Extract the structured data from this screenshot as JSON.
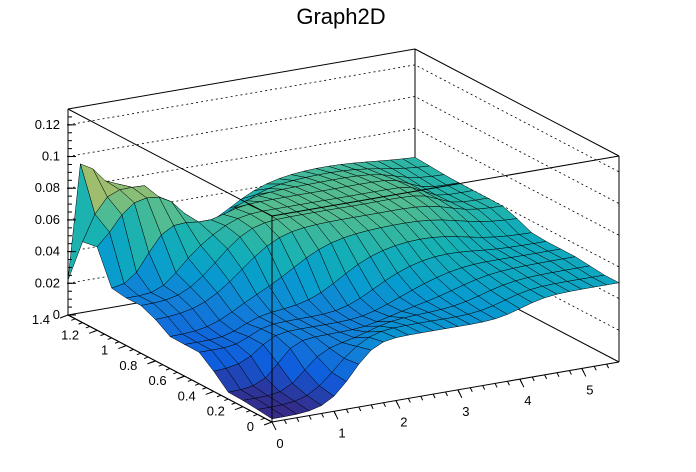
{
  "chart_data": {
    "type": "surface",
    "title": "Graph2D",
    "xlabel": "",
    "ylabel": "",
    "zlabel": "",
    "x_range": [
      0,
      5.6
    ],
    "y_range": [
      0,
      1.4
    ],
    "z_range": [
      0,
      0.13
    ],
    "x_ticks": [
      "0",
      "1",
      "2",
      "3",
      "4",
      "5"
    ],
    "y_ticks": [
      "0",
      "0.2",
      "0.4",
      "0.6",
      "0.8",
      "1",
      "1.2",
      "1.4"
    ],
    "z_ticks": [
      "0",
      "0.02",
      "0.04",
      "0.06",
      "0.08",
      "0.1",
      "0.12"
    ],
    "grid": true,
    "palette": "yellow-green-blue (kBird)",
    "grid_x": [
      0.0,
      0.2,
      0.4,
      0.6,
      0.8,
      1.0,
      1.2,
      1.4,
      1.6,
      1.8,
      2.0,
      2.2,
      2.4,
      2.6,
      2.8,
      3.0,
      3.2,
      3.4,
      3.6,
      3.8,
      4.0,
      4.2,
      4.4,
      4.6,
      4.8,
      5.0,
      5.2,
      5.4,
      5.6
    ],
    "grid_y": [
      0.0,
      0.1,
      0.2,
      0.3,
      0.4,
      0.5,
      0.6,
      0.7,
      0.8,
      0.9,
      1.0,
      1.1,
      1.2,
      1.3,
      1.4
    ],
    "z_samples": [
      {
        "x": 0.0,
        "y": 1.4,
        "z": 0.022
      },
      {
        "x": 0.0,
        "y": 1.0,
        "z": 0.03
      },
      {
        "x": 0.0,
        "y": 0.6,
        "z": 0.02
      },
      {
        "x": 0.0,
        "y": 0.2,
        "z": 0.004
      },
      {
        "x": 0.0,
        "y": 0.0,
        "z": 0.002
      },
      {
        "x": 0.2,
        "y": 1.4,
        "z": 0.094
      },
      {
        "x": 0.8,
        "y": 1.3,
        "z": 0.08
      },
      {
        "x": 1.6,
        "y": 1.4,
        "z": 0.04
      },
      {
        "x": 1.6,
        "y": 0.4,
        "z": 0.03
      },
      {
        "x": 2.5,
        "y": 1.0,
        "z": 0.07
      },
      {
        "x": 2.5,
        "y": 0.0,
        "z": 0.04
      },
      {
        "x": 3.0,
        "y": 1.0,
        "z": 0.07
      },
      {
        "x": 4.0,
        "y": 1.0,
        "z": 0.07
      },
      {
        "x": 5.6,
        "y": 1.0,
        "z": 0.06
      },
      {
        "x": 5.6,
        "y": 0.4,
        "z": 0.052
      },
      {
        "x": 5.6,
        "y": 0.0,
        "z": 0.05
      }
    ]
  }
}
